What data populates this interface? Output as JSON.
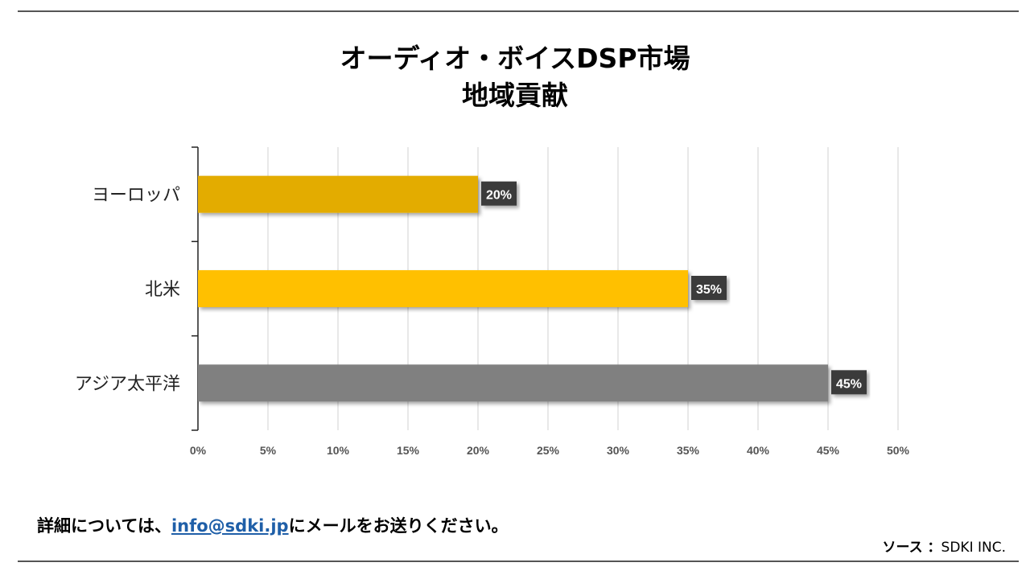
{
  "chart_data": {
    "type": "bar",
    "orientation": "horizontal",
    "title": [
      "オーディオ・ボイスDSP市場",
      "地域貢献"
    ],
    "categories": [
      "ヨーロッパ",
      "北米",
      "アジア太平洋"
    ],
    "values": [
      20,
      35,
      45
    ],
    "value_labels": [
      "20%",
      "35%",
      "45%"
    ],
    "bar_colors": [
      "#E3AC05",
      "#FFC000",
      "#808080"
    ],
    "xlim": [
      0,
      50
    ],
    "xticks": [
      0,
      5,
      10,
      15,
      20,
      25,
      30,
      35,
      40,
      45,
      50
    ],
    "tick_suffix": "%",
    "grid": true,
    "label_bg": "#3a3a3a",
    "xlabel": "",
    "ylabel": ""
  },
  "footer": {
    "note_prefix": "詳細については、",
    "email": "info@sdki.jp",
    "note_suffix": "にメールをお送りください。"
  },
  "source": {
    "label": "ソース ：",
    "value": "SDKI INC."
  }
}
